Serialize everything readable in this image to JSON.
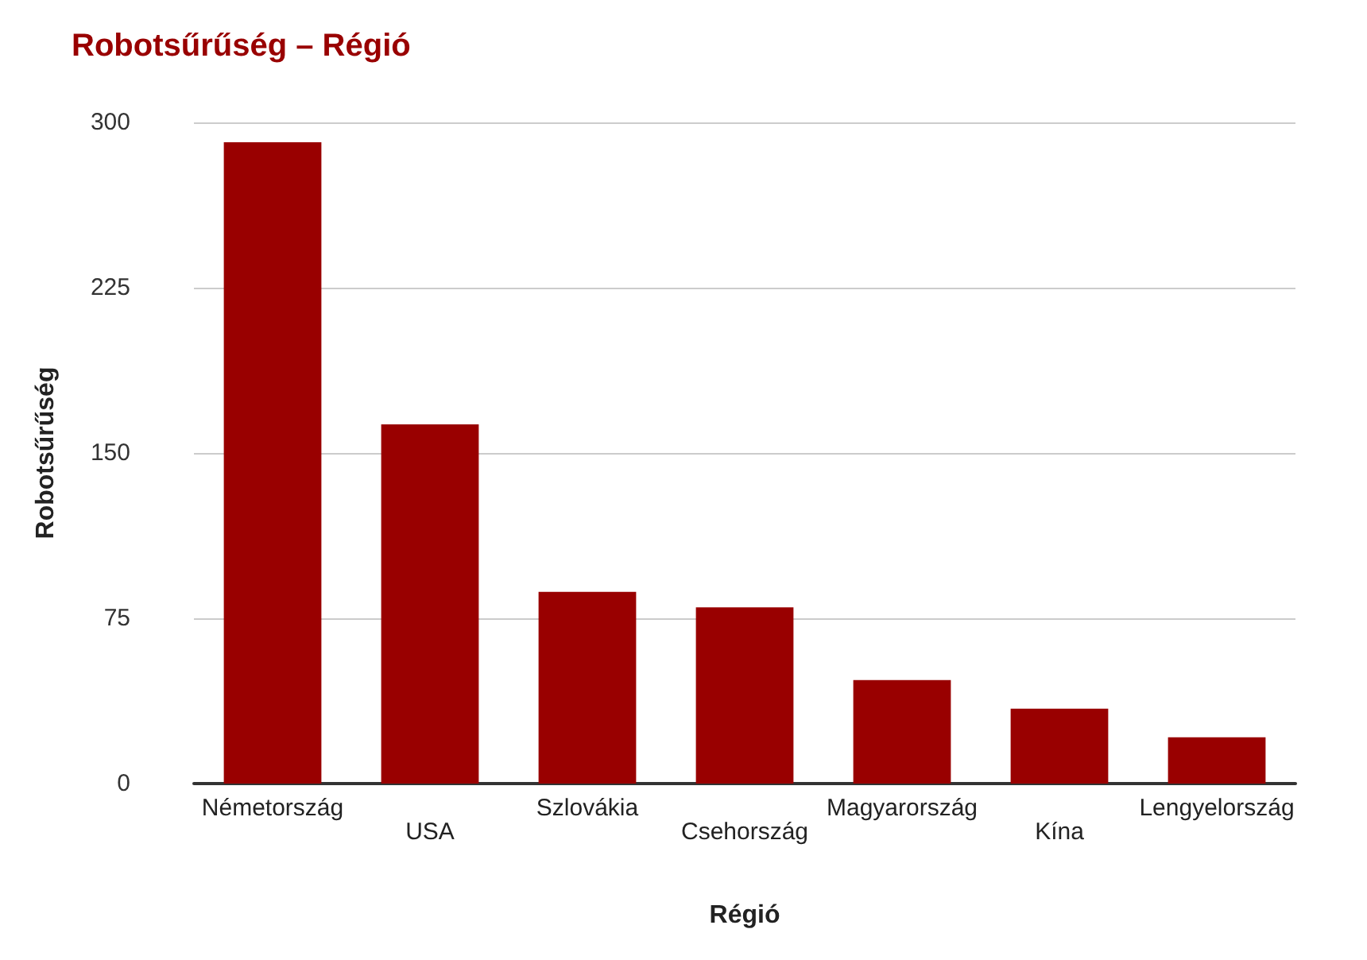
{
  "chart_data": {
    "type": "bar",
    "title": "Robotsűrűség – Régió",
    "xlabel": "Régió",
    "ylabel": "Robotsűrűség",
    "categories": [
      "Németország",
      "USA",
      "Szlovákia",
      "Csehország",
      "Magyarország",
      "Kína",
      "Lengyelország"
    ],
    "values": [
      291,
      163,
      87,
      80,
      47,
      34,
      21
    ],
    "color": "#990000",
    "ylim": [
      0,
      300
    ],
    "yticks": [
      0,
      75,
      150,
      225,
      300
    ],
    "grid": "y"
  }
}
